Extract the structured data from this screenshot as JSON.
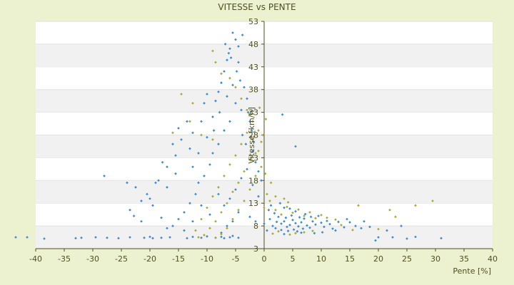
{
  "chart_data": {
    "type": "scatter",
    "title": "VITESSE vs PENTE",
    "xlabel": "Pente [%]",
    "ylabel": "Vitesse [km/h]",
    "xlim": [
      -40,
      40
    ],
    "ylim": [
      3,
      53
    ],
    "x_ticks": [
      -40,
      -35,
      -30,
      -25,
      -20,
      -15,
      -10,
      -5,
      0,
      5,
      10,
      15,
      20,
      25,
      30,
      35,
      40
    ],
    "y_ticks": [
      3,
      8,
      13,
      18,
      23,
      28,
      33,
      38,
      43,
      48,
      53
    ],
    "grid": "horizontal alternating bands",
    "colors": {
      "background": "#ecf2d0",
      "plot_band_light": "#ffffff",
      "plot_band_dark": "#f1f1f1",
      "axis": "#4f4f1f",
      "series_blue": "#3a8ad6",
      "series_olive": "#a9a936"
    },
    "series": [
      {
        "color": "#3a8ad6",
        "points": [
          [
            -43.5,
            5.5
          ],
          [
            -41.5,
            5.5
          ],
          [
            -38.5,
            5.2
          ],
          [
            -33,
            5.3
          ],
          [
            -32,
            5.4
          ],
          [
            -29.5,
            5.5
          ],
          [
            -27.5,
            5.4
          ],
          [
            -25.5,
            5.3
          ],
          [
            -23.5,
            5.5
          ],
          [
            -21,
            5.4
          ],
          [
            -20,
            5.6
          ],
          [
            -19.5,
            5.3
          ],
          [
            -18,
            5.4
          ],
          [
            -16.5,
            5.5
          ],
          [
            -13.5,
            5.3
          ],
          [
            -12.5,
            5.6
          ],
          [
            -11,
            5.4
          ],
          [
            -10,
            5.7
          ],
          [
            -8.5,
            5.4
          ],
          [
            -7.5,
            5.6
          ],
          [
            -7,
            5.3
          ],
          [
            -6,
            5.5
          ],
          [
            -5.5,
            5.8
          ],
          [
            -4.5,
            5.4
          ],
          [
            -28,
            19
          ],
          [
            -24,
            17.5
          ],
          [
            -22.5,
            16.5
          ],
          [
            -20.5,
            15
          ],
          [
            -19,
            17.5
          ],
          [
            -21.5,
            13.5
          ],
          [
            -23.5,
            11.5
          ],
          [
            -22.8,
            10.2
          ],
          [
            -21.5,
            9
          ],
          [
            -19.5,
            12.5
          ],
          [
            -17,
            16.5
          ],
          [
            -15.5,
            19.5
          ],
          [
            -17.8,
            22
          ],
          [
            -15.5,
            23.5
          ],
          [
            -14.5,
            27
          ],
          [
            -13,
            25
          ],
          [
            -12.5,
            21
          ],
          [
            -11,
            31
          ],
          [
            -10,
            37
          ],
          [
            -10.5,
            35
          ],
          [
            -9,
            32
          ],
          [
            -8.5,
            35.5
          ],
          [
            -8,
            37.5
          ],
          [
            -7.5,
            39.5
          ],
          [
            -7,
            42
          ],
          [
            -6.5,
            44.5
          ],
          [
            -6,
            47
          ],
          [
            -5.5,
            50.5
          ],
          [
            -5,
            49
          ],
          [
            -4.5,
            47.5
          ],
          [
            -6.8,
            48
          ],
          [
            -6.2,
            46
          ],
          [
            -5.8,
            45
          ],
          [
            -4.8,
            42
          ],
          [
            -4.2,
            40
          ],
          [
            -3.5,
            38.5
          ],
          [
            -3,
            36
          ],
          [
            -2.8,
            33
          ],
          [
            -2.5,
            31
          ],
          [
            -3.8,
            28
          ],
          [
            -3.2,
            26
          ],
          [
            -2,
            24.5
          ],
          [
            -1.5,
            22
          ],
          [
            -1,
            20
          ],
          [
            -0.5,
            18
          ],
          [
            -1.8,
            26.5
          ],
          [
            -2.2,
            29
          ],
          [
            -4,
            33.5
          ],
          [
            -5,
            35
          ],
          [
            -6,
            31
          ],
          [
            -7,
            29
          ],
          [
            -8,
            26
          ],
          [
            -9,
            24
          ],
          [
            -9.5,
            21.5
          ],
          [
            -10.5,
            19
          ],
          [
            -11.5,
            17.5
          ],
          [
            -12,
            15
          ],
          [
            -13,
            13
          ],
          [
            -14,
            11
          ],
          [
            -15,
            9.5
          ],
          [
            -16,
            8
          ],
          [
            -17,
            7.5
          ],
          [
            -18,
            9.8
          ],
          [
            -12.5,
            28.5
          ],
          [
            -11.5,
            24
          ],
          [
            -10,
            27.5
          ],
          [
            -8.8,
            29
          ],
          [
            -7.8,
            33
          ],
          [
            -6.5,
            36.5
          ],
          [
            -5.5,
            39
          ],
          [
            -4.5,
            44
          ],
          [
            -3.8,
            50
          ],
          [
            -8,
            15
          ],
          [
            -7,
            12.5
          ],
          [
            -6,
            14
          ],
          [
            -5,
            16
          ],
          [
            -4,
            18.5
          ],
          [
            -3,
            20.5
          ],
          [
            -2,
            17
          ],
          [
            -1,
            14.5
          ],
          [
            -4.5,
            11
          ],
          [
            -5.5,
            9
          ],
          [
            -6.5,
            8
          ],
          [
            -7.5,
            6.5
          ],
          [
            -2.5,
            10
          ],
          [
            -1.5,
            9
          ],
          [
            -9.5,
            10.5
          ],
          [
            -11,
            12.5
          ],
          [
            -12.5,
            9
          ],
          [
            -14,
            7
          ],
          [
            -13.5,
            31
          ],
          [
            -15,
            29.5
          ],
          [
            -16,
            26
          ],
          [
            -17,
            21
          ],
          [
            -18.5,
            18
          ],
          [
            -20,
            14
          ],
          [
            0,
            8.5
          ],
          [
            0.5,
            7
          ],
          [
            1,
            9.5
          ],
          [
            1.5,
            8
          ],
          [
            2,
            7.5
          ],
          [
            2.5,
            10
          ],
          [
            3,
            8.5
          ],
          [
            3.5,
            9
          ],
          [
            4,
            7.8
          ],
          [
            4.5,
            8.2
          ],
          [
            5,
            9.3
          ],
          [
            5.5,
            8.6
          ],
          [
            6,
            7.9
          ],
          [
            6.5,
            8.8
          ],
          [
            7,
            9.6
          ],
          [
            7.5,
            8.1
          ],
          [
            8,
            7.6
          ],
          [
            8.5,
            9
          ],
          [
            9,
            8.3
          ],
          [
            9.5,
            10.2
          ],
          [
            10,
            8.7
          ],
          [
            10.5,
            7.8
          ],
          [
            11,
            9.1
          ],
          [
            11.5,
            8.4
          ],
          [
            12,
            7.4
          ],
          [
            13,
            8.9
          ],
          [
            14,
            7.7
          ],
          [
            15,
            8.8
          ],
          [
            16,
            8
          ],
          [
            17,
            7.5
          ],
          [
            2.2,
            8.9
          ],
          [
            3.8,
            9.8
          ],
          [
            4.8,
            10.3
          ],
          [
            5.2,
            7.2
          ],
          [
            6.2,
            9.9
          ],
          [
            6.8,
            7.4
          ],
          [
            7.2,
            10.6
          ],
          [
            8.2,
            10
          ],
          [
            3,
            7.1
          ],
          [
            4.2,
            6.9
          ],
          [
            5.8,
            6.8
          ],
          [
            1.8,
            10.8
          ],
          [
            0.8,
            11.5
          ],
          [
            1.2,
            12.5
          ],
          [
            2.8,
            13
          ],
          [
            4.5,
            11.8
          ],
          [
            5.5,
            11.2
          ],
          [
            3.5,
            12
          ],
          [
            3.2,
            32.5
          ],
          [
            5.5,
            25.5
          ],
          [
            3.5,
            6.2
          ],
          [
            6.5,
            6.5
          ],
          [
            8.8,
            6.4
          ],
          [
            10.2,
            6.6
          ],
          [
            19.5,
            4.8
          ],
          [
            20,
            5.5
          ],
          [
            22.5,
            5.5
          ],
          [
            25,
            5.2
          ],
          [
            26.5,
            5.6
          ],
          [
            31,
            5.3
          ],
          [
            24,
            8
          ],
          [
            17.5,
            9
          ],
          [
            12.5,
            7
          ],
          [
            14.5,
            9.5
          ],
          [
            18.5,
            7.8
          ],
          [
            21.5,
            7
          ]
        ]
      },
      {
        "color": "#a9a936",
        "points": [
          [
            -9,
            46.5
          ],
          [
            -8.5,
            44
          ],
          [
            -7.5,
            41.5
          ],
          [
            -6,
            40.5
          ],
          [
            -5,
            38.5
          ],
          [
            -4,
            36
          ],
          [
            -3,
            33.5
          ],
          [
            -2,
            31
          ],
          [
            -1,
            29
          ],
          [
            -0.5,
            26.5
          ],
          [
            -1.5,
            24
          ],
          [
            -2.5,
            22.5
          ],
          [
            -3.5,
            20
          ],
          [
            -4.5,
            17.5
          ],
          [
            -5.5,
            15.5
          ],
          [
            -6.5,
            13
          ],
          [
            -7.5,
            11
          ],
          [
            -8.5,
            9
          ],
          [
            -9.5,
            7.5
          ],
          [
            -10.5,
            6
          ],
          [
            -11.5,
            5.5
          ],
          [
            -12,
            7
          ],
          [
            -11,
            9.5
          ],
          [
            -10,
            12
          ],
          [
            -9,
            14.5
          ],
          [
            -8,
            16.5
          ],
          [
            -7,
            19
          ],
          [
            -6,
            21.5
          ],
          [
            -5,
            23.5
          ],
          [
            -4,
            26
          ],
          [
            -3,
            28.5
          ],
          [
            -2,
            27
          ],
          [
            -1,
            24.5
          ],
          [
            -0.5,
            21
          ],
          [
            -1.5,
            19
          ],
          [
            -2.5,
            16
          ],
          [
            -3.5,
            13.5
          ],
          [
            -4.5,
            11.5
          ],
          [
            -5.5,
            9.5
          ],
          [
            -6.5,
            7.5
          ],
          [
            -7.5,
            6.2
          ],
          [
            -8.5,
            5.4
          ],
          [
            -12.5,
            35
          ],
          [
            -14.5,
            37
          ],
          [
            -13,
            31
          ],
          [
            -16,
            28.5
          ],
          [
            -11,
            28
          ],
          [
            -9,
            27
          ],
          [
            0,
            12
          ],
          [
            1,
            13.5
          ],
          [
            2,
            11.5
          ],
          [
            3,
            10.5
          ],
          [
            4,
            12.2
          ],
          [
            5,
            10.9
          ],
          [
            6,
            11.6
          ],
          [
            7,
            10.2
          ],
          [
            8,
            11
          ],
          [
            9,
            9.7
          ],
          [
            10,
            10.4
          ],
          [
            11,
            9.8
          ],
          [
            1.5,
            6.3
          ],
          [
            2.5,
            6.8
          ],
          [
            4.5,
            6.1
          ],
          [
            5.5,
            6.4
          ],
          [
            7,
            6.6
          ],
          [
            8.5,
            6.9
          ],
          [
            16.5,
            12.5
          ],
          [
            22,
            11.5
          ],
          [
            23,
            10
          ],
          [
            26.5,
            12.5
          ],
          [
            29.5,
            13.5
          ],
          [
            20,
            7.3
          ],
          [
            0.5,
            15
          ],
          [
            1.2,
            17.5
          ],
          [
            0.2,
            19.5
          ],
          [
            2,
            14.5
          ],
          [
            3.5,
            14
          ],
          [
            4.2,
            13.2
          ],
          [
            -0.2,
            28
          ],
          [
            0.3,
            31.5
          ],
          [
            -0.8,
            34
          ],
          [
            12.5,
            9.4
          ],
          [
            13.5,
            8.2
          ],
          [
            15.5,
            7.1
          ]
        ]
      }
    ]
  }
}
